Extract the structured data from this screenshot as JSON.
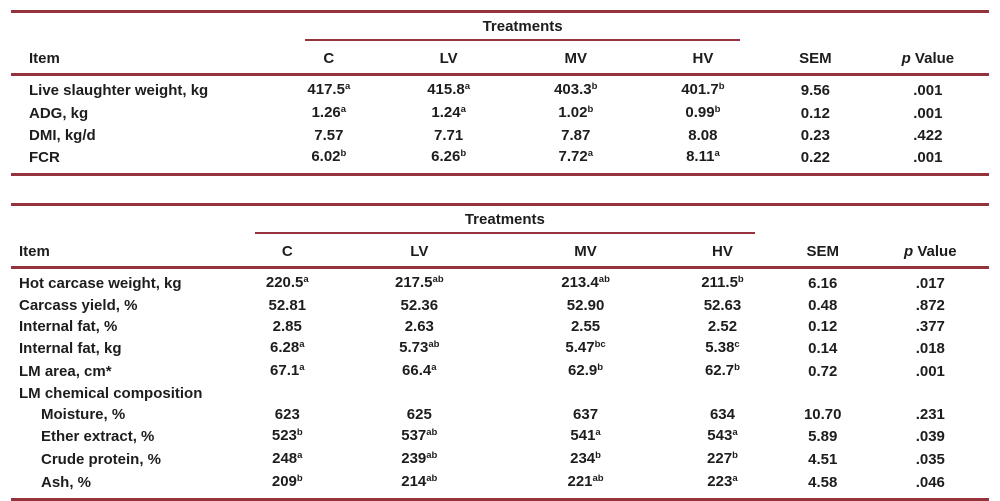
{
  "colors": {
    "rule": "#96323b",
    "text": "#1d1d1f",
    "background": "#ffffff"
  },
  "tables": [
    {
      "name": "growth-performance",
      "spanner": "Treatments",
      "columns": [
        "Item",
        "C",
        "LV",
        "MV",
        "HV",
        "SEM"
      ],
      "p_head": {
        "italic": "p",
        "rest": " Value"
      },
      "rows": [
        {
          "item": "Live slaughter weight, kg",
          "cells": [
            {
              "v": "417.5",
              "sup": "a"
            },
            {
              "v": "415.8",
              "sup": "a"
            },
            {
              "v": "403.3",
              "sup": "b"
            },
            {
              "v": "401.7",
              "sup": "b"
            }
          ],
          "sem": "9.56",
          "p": ".001"
        },
        {
          "item": "ADG, kg",
          "cells": [
            {
              "v": "1.26",
              "sup": "a"
            },
            {
              "v": "1.24",
              "sup": "a"
            },
            {
              "v": "1.02",
              "sup": "b"
            },
            {
              "v": "0.99",
              "sup": "b"
            }
          ],
          "sem": "0.12",
          "p": ".001"
        },
        {
          "item": "DMI, kg/d",
          "cells": [
            {
              "v": "7.57",
              "sup": ""
            },
            {
              "v": "7.71",
              "sup": ""
            },
            {
              "v": "7.87",
              "sup": ""
            },
            {
              "v": "8.08",
              "sup": ""
            }
          ],
          "sem": "0.23",
          "p": ".422"
        },
        {
          "item": "FCR",
          "cells": [
            {
              "v": "6.02",
              "sup": "b"
            },
            {
              "v": "6.26",
              "sup": "b"
            },
            {
              "v": "7.72",
              "sup": "a"
            },
            {
              "v": "8.11",
              "sup": "a"
            }
          ],
          "sem": "0.22",
          "p": ".001"
        }
      ]
    },
    {
      "name": "carcass-characteristics",
      "spanner": "Treatments",
      "columns": [
        "Item",
        "C",
        "LV",
        "MV",
        "HV",
        "SEM"
      ],
      "p_head": {
        "italic": "p",
        "rest": " Value"
      },
      "rows": [
        {
          "item": "Hot carcase weight, kg",
          "cells": [
            {
              "v": "220.5",
              "sup": "a"
            },
            {
              "v": "217.5",
              "sup": "ab"
            },
            {
              "v": "213.4",
              "sup": "ab"
            },
            {
              "v": "211.5",
              "sup": "b"
            }
          ],
          "sem": "6.16",
          "p": ".017"
        },
        {
          "item": "Carcass yield, %",
          "cells": [
            {
              "v": "52.81",
              "sup": ""
            },
            {
              "v": "52.36",
              "sup": ""
            },
            {
              "v": "52.90",
              "sup": ""
            },
            {
              "v": "52.63",
              "sup": ""
            }
          ],
          "sem": "0.48",
          "p": ".872"
        },
        {
          "item": "Internal fat, %",
          "cells": [
            {
              "v": "2.85",
              "sup": ""
            },
            {
              "v": "2.63",
              "sup": ""
            },
            {
              "v": "2.55",
              "sup": ""
            },
            {
              "v": "2.52",
              "sup": ""
            }
          ],
          "sem": "0.12",
          "p": ".377"
        },
        {
          "item": "Internal fat, kg",
          "cells": [
            {
              "v": "6.28",
              "sup": "a"
            },
            {
              "v": "5.73",
              "sup": "ab"
            },
            {
              "v": "5.47",
              "sup": "bc"
            },
            {
              "v": "5.38",
              "sup": "c"
            }
          ],
          "sem": "0.14",
          "p": ".018"
        },
        {
          "item": "LM area, cm*",
          "cells": [
            {
              "v": "67.1",
              "sup": "a"
            },
            {
              "v": "66.4",
              "sup": "a"
            },
            {
              "v": "62.9",
              "sup": "b"
            },
            {
              "v": "62.7",
              "sup": "b"
            }
          ],
          "sem": "0.72",
          "p": ".001"
        },
        {
          "item": "LM chemical composition",
          "group": true
        },
        {
          "item": "Moisture, %",
          "indent": true,
          "cells": [
            {
              "v": "623",
              "sup": ""
            },
            {
              "v": "625",
              "sup": ""
            },
            {
              "v": "637",
              "sup": ""
            },
            {
              "v": "634",
              "sup": ""
            }
          ],
          "sem": "10.70",
          "p": ".231"
        },
        {
          "item": "Ether extract, %",
          "indent": true,
          "cells": [
            {
              "v": "523",
              "sup": "b"
            },
            {
              "v": "537",
              "sup": "ab"
            },
            {
              "v": "541",
              "sup": "a"
            },
            {
              "v": "543",
              "sup": "a"
            }
          ],
          "sem": "5.89",
          "p": ".039"
        },
        {
          "item": "Crude protein, %",
          "indent": true,
          "cells": [
            {
              "v": "248",
              "sup": "a"
            },
            {
              "v": "239",
              "sup": "ab"
            },
            {
              "v": "234",
              "sup": "b"
            },
            {
              "v": "227",
              "sup": "b"
            }
          ],
          "sem": "4.51",
          "p": ".035"
        },
        {
          "item": "Ash, %",
          "indent": true,
          "cells": [
            {
              "v": "209",
              "sup": "b"
            },
            {
              "v": "214",
              "sup": "ab"
            },
            {
              "v": "221",
              "sup": "ab"
            },
            {
              "v": "223",
              "sup": "a"
            }
          ],
          "sem": "4.58",
          "p": ".046"
        }
      ]
    }
  ]
}
